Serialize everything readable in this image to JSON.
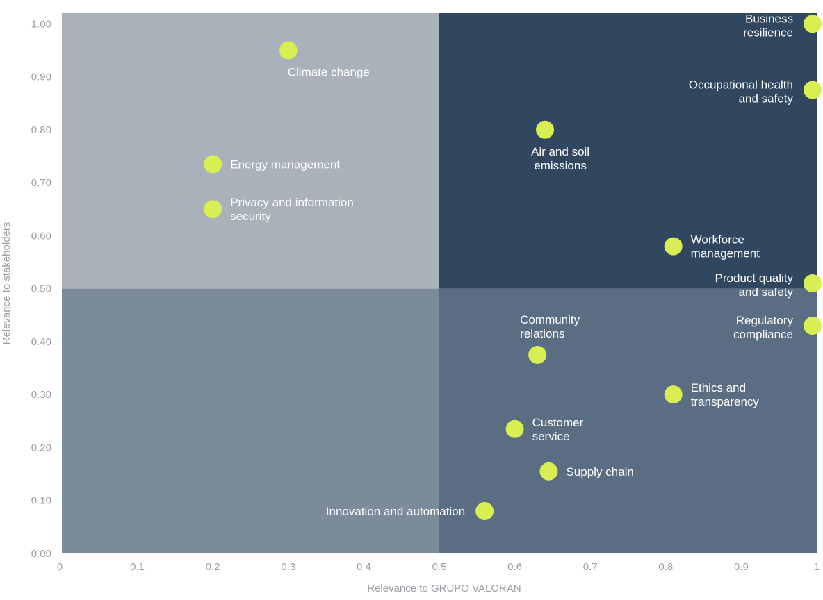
{
  "chart_data": {
    "type": "scatter",
    "title": "",
    "xlabel": "Relevance to GRUPO VALORAN",
    "ylabel": "Relevance to stakeholders",
    "xlim": [
      0,
      1
    ],
    "ylim": [
      0,
      1.02
    ],
    "x_ticks": [
      "0",
      "0.1",
      "0.2",
      "0.3",
      "0.4",
      "0.5",
      "0.6",
      "0.7",
      "0.8",
      "0.9",
      "1"
    ],
    "y_ticks": [
      "0.00",
      "0.10",
      "0.20",
      "0.30",
      "0.40",
      "0.50",
      "0.60",
      "0.70",
      "0.80",
      "0.90",
      "1.00"
    ],
    "quadrant_split": {
      "x": 0.5,
      "y": 0.5
    },
    "colors": {
      "top_left": "#a9b1bb",
      "top_right": "#30475f",
      "bottom_left": "#7b8b9a",
      "bottom_right": "#5a6d82",
      "point": "#d8ee52",
      "label": "#ffffff"
    },
    "points": [
      {
        "name": "Business resilience",
        "lines": [
          "Business",
          "resilience"
        ],
        "x": 1.0,
        "y": 1.0,
        "label_side": "left"
      },
      {
        "name": "Climate change",
        "lines": [
          "Climate change"
        ],
        "x": 0.3,
        "y": 0.95,
        "label_side": "below"
      },
      {
        "name": "Occupational health and safety",
        "lines": [
          "Occupational health",
          "and safety"
        ],
        "x": 1.0,
        "y": 0.875,
        "label_side": "left"
      },
      {
        "name": "Air and soil emissions",
        "lines": [
          "Air and soil",
          "emissions"
        ],
        "x": 0.64,
        "y": 0.8,
        "label_side": "below"
      },
      {
        "name": "Energy management",
        "lines": [
          "Energy management"
        ],
        "x": 0.2,
        "y": 0.735,
        "label_side": "right"
      },
      {
        "name": "Privacy and information security",
        "lines": [
          "Privacy and information",
          "security"
        ],
        "x": 0.2,
        "y": 0.65,
        "label_side": "right"
      },
      {
        "name": "Workforce management",
        "lines": [
          "Workforce",
          "management"
        ],
        "x": 0.81,
        "y": 0.58,
        "label_side": "right"
      },
      {
        "name": "Product quality and safety",
        "lines": [
          "Product quality",
          "and safety"
        ],
        "x": 1.0,
        "y": 0.51,
        "label_side": "left"
      },
      {
        "name": "Regulatory compliance",
        "lines": [
          "Regulatory",
          "compliance"
        ],
        "x": 1.0,
        "y": 0.43,
        "label_side": "left"
      },
      {
        "name": "Community relations",
        "lines": [
          "Community",
          "relations"
        ],
        "x": 0.63,
        "y": 0.375,
        "label_side": "above"
      },
      {
        "name": "Ethics and transparency",
        "lines": [
          "Ethics and",
          "transparency"
        ],
        "x": 0.81,
        "y": 0.3,
        "label_side": "right"
      },
      {
        "name": "Customer service",
        "lines": [
          "Customer",
          "service"
        ],
        "x": 0.6,
        "y": 0.235,
        "label_side": "right"
      },
      {
        "name": "Supply chain",
        "lines": [
          "Supply chain"
        ],
        "x": 0.645,
        "y": 0.155,
        "label_side": "right"
      },
      {
        "name": "Innovation and automation",
        "lines": [
          "Innovation and automation"
        ],
        "x": 0.56,
        "y": 0.08,
        "label_side": "left"
      }
    ]
  }
}
